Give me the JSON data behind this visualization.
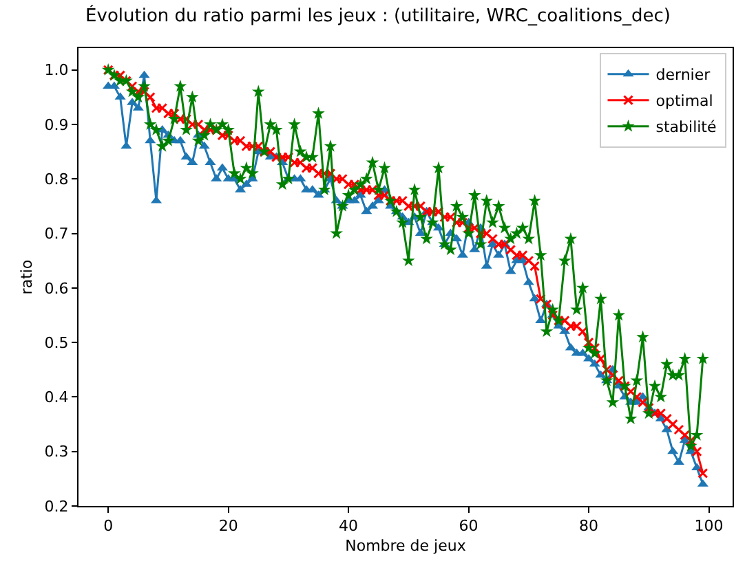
{
  "chart_data": {
    "type": "line",
    "title": "Évolution du ratio parmi les jeux : (utilitaire, WRC_coalitions_dec)",
    "xlabel": "Nombre de jeux",
    "ylabel": "ratio",
    "x": [
      0,
      1,
      2,
      3,
      4,
      5,
      6,
      7,
      8,
      9,
      10,
      11,
      12,
      13,
      14,
      15,
      16,
      17,
      18,
      19,
      20,
      21,
      22,
      23,
      24,
      25,
      26,
      27,
      28,
      29,
      30,
      31,
      32,
      33,
      34,
      35,
      36,
      37,
      38,
      39,
      40,
      41,
      42,
      43,
      44,
      45,
      46,
      47,
      48,
      49,
      50,
      51,
      52,
      53,
      54,
      55,
      56,
      57,
      58,
      59,
      60,
      61,
      62,
      63,
      64,
      65,
      66,
      67,
      68,
      69,
      70,
      71,
      72,
      73,
      74,
      75,
      76,
      77,
      78,
      79,
      80,
      81,
      82,
      83,
      84,
      85,
      86,
      87,
      88,
      89,
      90,
      91,
      92,
      93,
      94,
      95,
      96,
      97,
      98,
      99
    ],
    "series": [
      {
        "name": "dernier",
        "color": "#1f77b4",
        "marker": "triangle",
        "values": [
          0.97,
          0.97,
          0.95,
          0.86,
          0.94,
          0.93,
          0.99,
          0.87,
          0.76,
          0.89,
          0.88,
          0.87,
          0.87,
          0.84,
          0.83,
          0.88,
          0.86,
          0.83,
          0.8,
          0.82,
          0.8,
          0.8,
          0.78,
          0.79,
          0.8,
          0.85,
          0.85,
          0.84,
          0.84,
          0.83,
          0.8,
          0.8,
          0.8,
          0.78,
          0.78,
          0.77,
          0.78,
          0.8,
          0.76,
          0.75,
          0.76,
          0.76,
          0.77,
          0.74,
          0.75,
          0.76,
          0.78,
          0.75,
          0.74,
          0.73,
          0.72,
          0.73,
          0.7,
          0.74,
          0.72,
          0.71,
          0.68,
          0.7,
          0.69,
          0.66,
          0.72,
          0.67,
          0.71,
          0.64,
          0.68,
          0.66,
          0.68,
          0.63,
          0.65,
          0.65,
          0.61,
          0.58,
          0.54,
          0.57,
          0.55,
          0.53,
          0.52,
          0.49,
          0.48,
          0.48,
          0.47,
          0.46,
          0.44,
          0.43,
          0.45,
          0.42,
          0.4,
          0.39,
          0.39,
          0.4,
          0.38,
          0.37,
          0.36,
          0.34,
          0.3,
          0.28,
          0.32,
          0.3,
          0.27,
          0.24
        ]
      },
      {
        "name": "optimal",
        "color": "#ff0000",
        "marker": "cross",
        "values": [
          1.0,
          0.99,
          0.99,
          0.98,
          0.97,
          0.96,
          0.96,
          0.95,
          0.93,
          0.93,
          0.92,
          0.92,
          0.91,
          0.91,
          0.9,
          0.9,
          0.89,
          0.89,
          0.89,
          0.88,
          0.88,
          0.87,
          0.87,
          0.86,
          0.86,
          0.86,
          0.85,
          0.85,
          0.84,
          0.84,
          0.84,
          0.83,
          0.83,
          0.82,
          0.82,
          0.81,
          0.81,
          0.81,
          0.8,
          0.8,
          0.79,
          0.79,
          0.78,
          0.78,
          0.78,
          0.77,
          0.77,
          0.76,
          0.76,
          0.76,
          0.75,
          0.75,
          0.75,
          0.74,
          0.74,
          0.74,
          0.73,
          0.73,
          0.72,
          0.72,
          0.71,
          0.71,
          0.7,
          0.7,
          0.69,
          0.68,
          0.68,
          0.67,
          0.66,
          0.66,
          0.65,
          0.64,
          0.58,
          0.57,
          0.55,
          0.54,
          0.54,
          0.53,
          0.53,
          0.52,
          0.5,
          0.49,
          0.47,
          0.45,
          0.44,
          0.43,
          0.42,
          0.41,
          0.4,
          0.39,
          0.38,
          0.37,
          0.37,
          0.36,
          0.35,
          0.34,
          0.33,
          0.32,
          0.3,
          0.26
        ]
      },
      {
        "name": "stabilité",
        "color": "#008000",
        "marker": "star",
        "values": [
          1.0,
          0.99,
          0.98,
          0.98,
          0.96,
          0.95,
          0.97,
          0.9,
          0.89,
          0.86,
          0.87,
          0.91,
          0.97,
          0.89,
          0.95,
          0.87,
          0.88,
          0.9,
          0.89,
          0.9,
          0.89,
          0.81,
          0.8,
          0.82,
          0.81,
          0.96,
          0.85,
          0.9,
          0.89,
          0.79,
          0.8,
          0.9,
          0.85,
          0.84,
          0.84,
          0.92,
          0.78,
          0.86,
          0.7,
          0.75,
          0.77,
          0.78,
          0.79,
          0.8,
          0.83,
          0.78,
          0.82,
          0.76,
          0.74,
          0.72,
          0.65,
          0.78,
          0.73,
          0.69,
          0.72,
          0.82,
          0.68,
          0.67,
          0.75,
          0.73,
          0.7,
          0.77,
          0.68,
          0.76,
          0.72,
          0.75,
          0.71,
          0.69,
          0.7,
          0.71,
          0.69,
          0.76,
          0.66,
          0.52,
          0.56,
          0.54,
          0.65,
          0.69,
          0.56,
          0.6,
          0.49,
          0.48,
          0.58,
          0.43,
          0.39,
          0.55,
          0.42,
          0.36,
          0.43,
          0.51,
          0.37,
          0.42,
          0.4,
          0.46,
          0.44,
          0.44,
          0.47,
          0.31,
          0.33,
          0.47
        ]
      }
    ],
    "xlim": [
      -4.95,
      103.95
    ],
    "xticks": [
      0,
      20,
      40,
      60,
      80,
      100
    ],
    "ylim": [
      0.2,
      1.04
    ],
    "yticks": [
      0.2,
      0.3,
      0.4,
      0.5,
      0.6,
      0.7,
      0.8,
      0.9,
      {
        "value": 1.0,
        "label": "1.0"
      }
    ],
    "legend": "top right",
    "line_style": "solid"
  }
}
